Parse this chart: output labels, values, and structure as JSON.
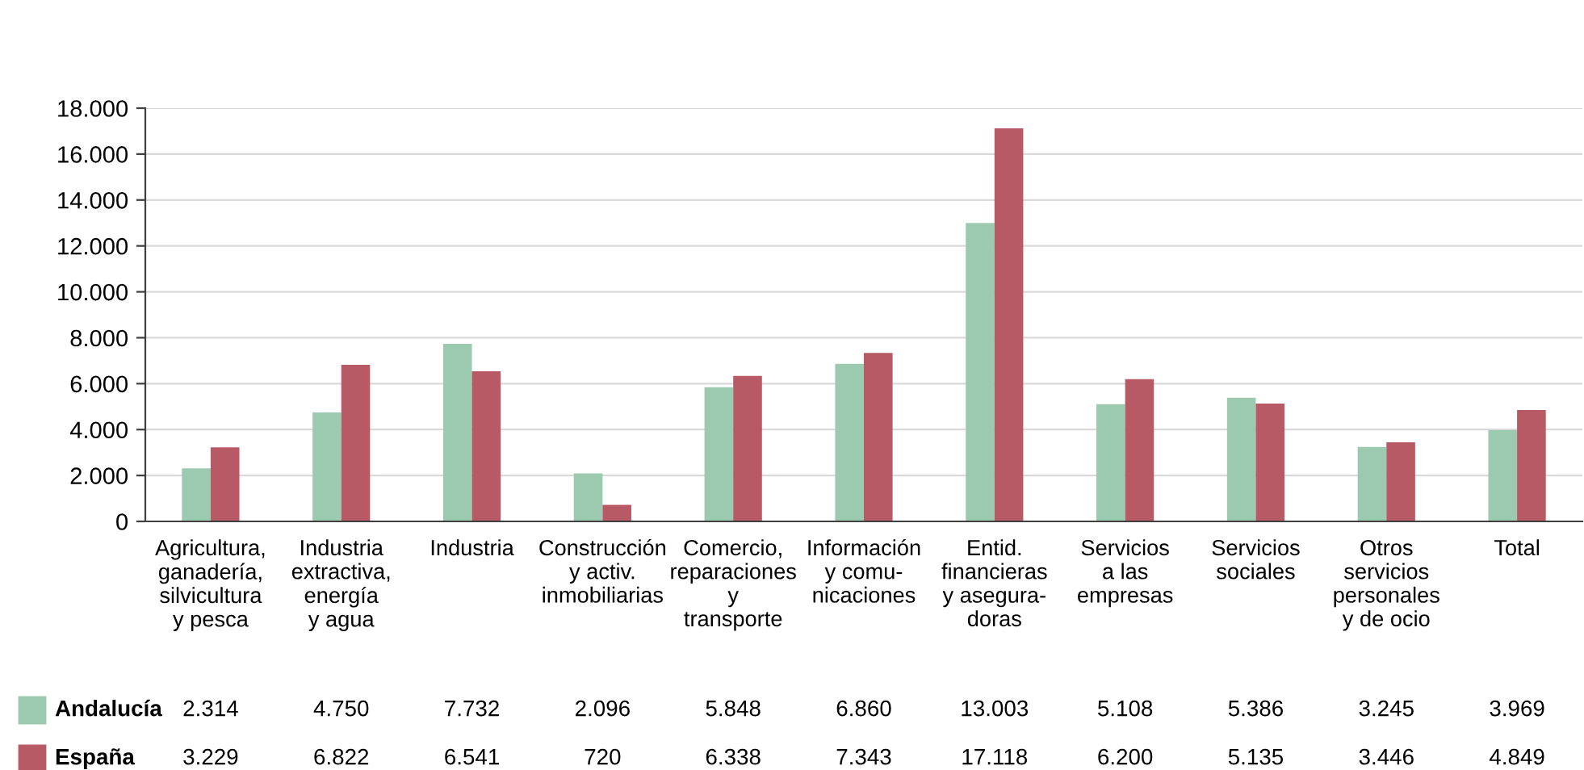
{
  "chart_data": {
    "type": "bar",
    "categories": [
      "Agricultura,\nganadería,\nsilvicultura\ny pesca",
      "Industria\nextractiva,\nenergía\ny agua",
      "Industria",
      "Construcción\ny activ.\ninmobiliarias",
      "Comercio,\nreparaciones\ny\ntransporte",
      "Información\ny comu-\nnicaciones",
      "Entid.\nfinancieras\ny asegura-\ndoras",
      "Servicios\na las\nempresas",
      "Servicios\nsociales",
      "Otros\nservicios\npersonales\ny de ocio",
      "Total"
    ],
    "series": [
      {
        "name": "Andalucía",
        "color": "#9ccab1",
        "values": [
          2314,
          4750,
          7732,
          2096,
          5848,
          6860,
          13003,
          5108,
          5386,
          3245,
          3969
        ],
        "value_labels": [
          "2.314",
          "4.750",
          "7.732",
          "2.096",
          "5.848",
          "6.860",
          "13.003",
          "5.108",
          "5.386",
          "3.245",
          "3.969"
        ]
      },
      {
        "name": "España",
        "color": "#b85a66",
        "values": [
          3229,
          6822,
          6541,
          720,
          6338,
          7343,
          17118,
          6200,
          5135,
          3446,
          4849
        ],
        "value_labels": [
          "3.229",
          "6.822",
          "6.541",
          "720",
          "6.338",
          "7.343",
          "17.118",
          "6.200",
          "5.135",
          "3.446",
          "4.849"
        ]
      }
    ],
    "ylim": [
      0,
      18000
    ],
    "yticks": [
      {
        "value": 0,
        "label": "0"
      },
      {
        "value": 2000,
        "label": "2.000"
      },
      {
        "value": 4000,
        "label": "4.000"
      },
      {
        "value": 6000,
        "label": "6.000"
      },
      {
        "value": 8000,
        "label": "8.000"
      },
      {
        "value": 10000,
        "label": "10.000"
      },
      {
        "value": 12000,
        "label": "12.000"
      },
      {
        "value": 14000,
        "label": "14.000"
      },
      {
        "value": 16000,
        "label": "16.000"
      },
      {
        "value": 18000,
        "label": "18.000"
      }
    ],
    "grid": "y",
    "legend": "bottom"
  }
}
